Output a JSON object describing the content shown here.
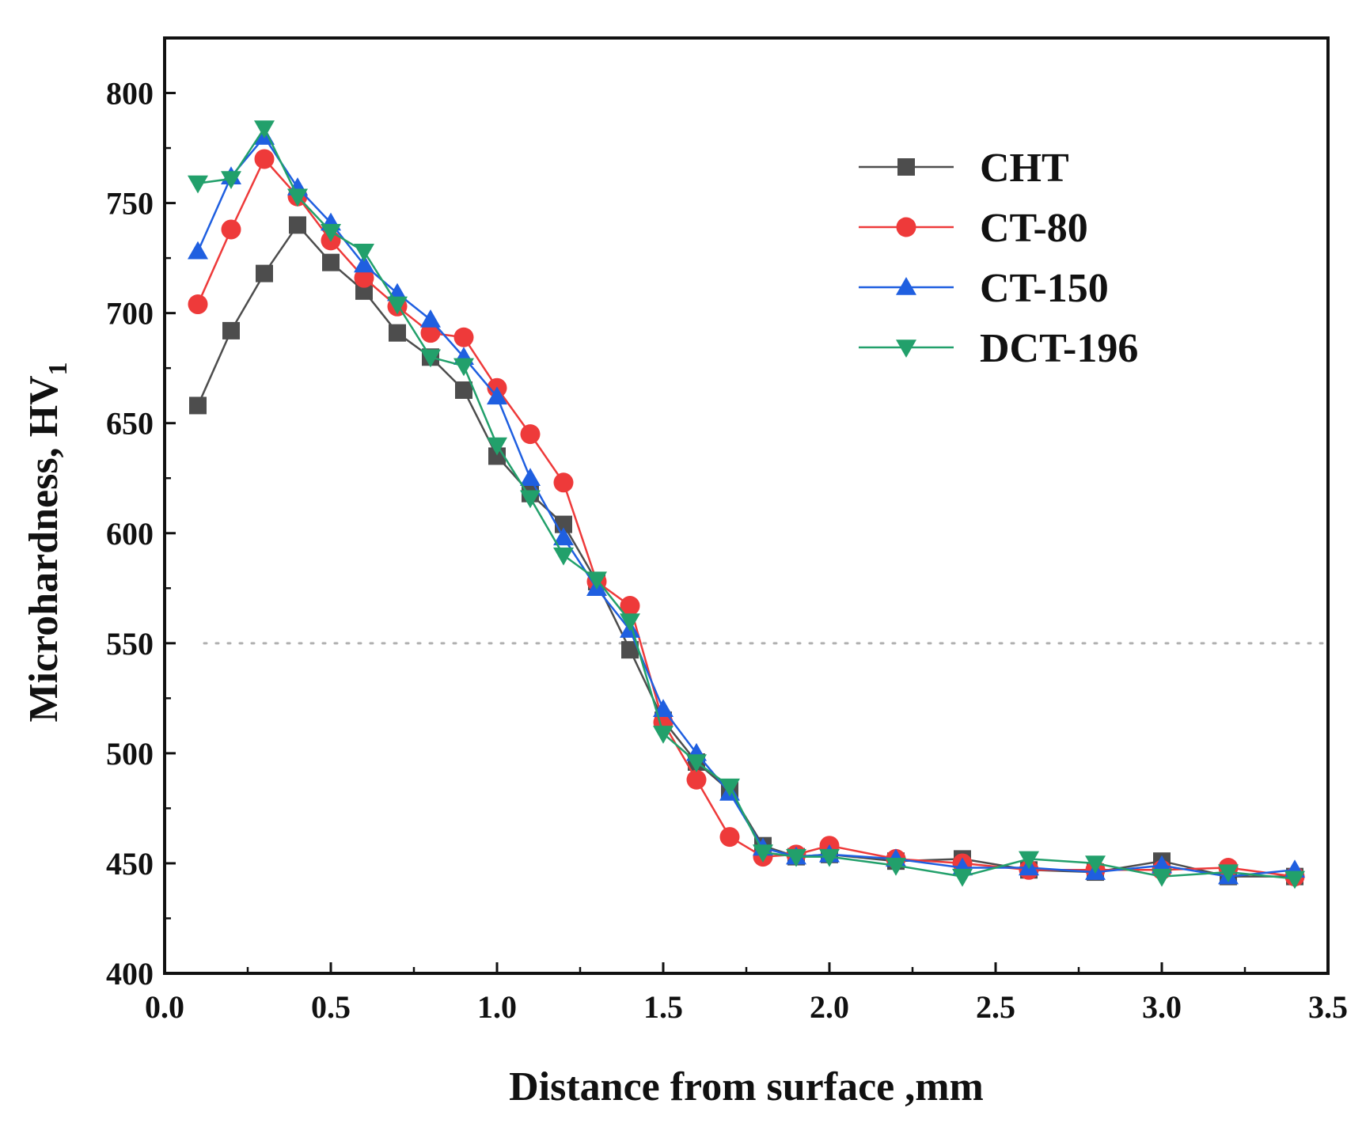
{
  "chart_data": {
    "type": "line",
    "title": "",
    "xlabel": "Distance from surface ,mm",
    "ylabel_main": "Microhardness, HV",
    "ylabel_sub": "1",
    "xlim": [
      0.0,
      3.5
    ],
    "ylim": [
      400,
      825
    ],
    "xticks": [
      "0.0",
      "0.5",
      "1.0",
      "1.5",
      "2.0",
      "2.5",
      "3.0",
      "3.5"
    ],
    "yticks": [
      "400",
      "450",
      "500",
      "550",
      "600",
      "650",
      "700",
      "750",
      "800"
    ],
    "reference_line": {
      "y": 550,
      "style": "dotted",
      "color": "#b0b0b0"
    },
    "legend_position": "top-right",
    "x": [
      0.1,
      0.2,
      0.3,
      0.4,
      0.5,
      0.6,
      0.7,
      0.8,
      0.9,
      1.0,
      1.1,
      1.2,
      1.3,
      1.4,
      1.5,
      1.6,
      1.7,
      1.8,
      1.9,
      2.0,
      2.2,
      2.4,
      2.6,
      2.8,
      3.0,
      3.2,
      3.4
    ],
    "series": [
      {
        "name": "CHT",
        "color": "#4d4d4d",
        "marker": "square",
        "values": [
          658,
          692,
          718,
          740,
          723,
          710,
          691,
          680,
          665,
          635,
          618,
          604,
          578,
          547,
          515,
          496,
          483,
          458,
          453,
          454,
          451,
          452,
          447,
          446,
          451,
          444,
          444
        ]
      },
      {
        "name": "CT-80",
        "color": "#ee3a3a",
        "marker": "circle",
        "values": [
          704,
          738,
          770,
          753,
          733,
          716,
          703,
          691,
          689,
          666,
          645,
          623,
          578,
          567,
          514,
          488,
          462,
          453,
          454,
          458,
          452,
          450,
          447,
          447,
          447,
          448,
          444
        ]
      },
      {
        "name": "CT-150",
        "color": "#1f5fe0",
        "marker": "triangle-up",
        "values": [
          728,
          762,
          780,
          757,
          741,
          722,
          709,
          697,
          680,
          662,
          625,
          598,
          575,
          556,
          520,
          500,
          482,
          457,
          453,
          454,
          452,
          448,
          448,
          446,
          449,
          444,
          447
        ]
      },
      {
        "name": "DCT-196",
        "color": "#22a06b",
        "marker": "triangle-down",
        "values": [
          759,
          761,
          784,
          753,
          737,
          728,
          704,
          680,
          676,
          640,
          616,
          590,
          579,
          560,
          509,
          496,
          485,
          455,
          453,
          453,
          449,
          444,
          452,
          450,
          444,
          446,
          443
        ]
      }
    ]
  }
}
